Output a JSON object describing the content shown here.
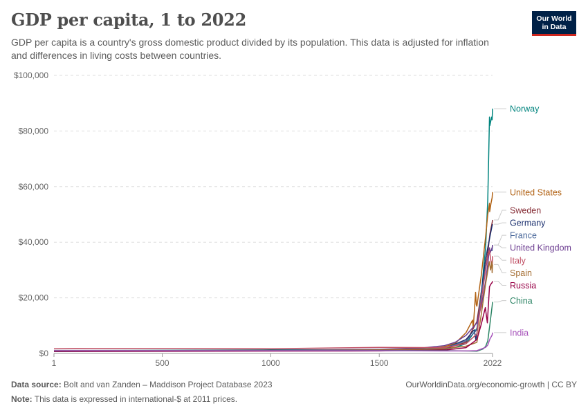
{
  "header": {
    "title": "GDP per capita, 1 to 2022",
    "subtitle": "GDP per capita is a country's gross domestic product divided by its population. This data is adjusted for inflation and differences in living costs between countries.",
    "logo_line1": "Our World",
    "logo_line2": "in Data"
  },
  "footer": {
    "source_label": "Data source:",
    "source_text": "Bolt and van Zanden – Maddison Project Database 2023",
    "note_label": "Note:",
    "note_text": "This data is expressed in international-$ at 2011 prices.",
    "credit": "OurWorldinData.org/economic-growth | CC BY"
  },
  "chart_data": {
    "type": "line",
    "title": "GDP per capita, 1 to 2022",
    "xlabel": "",
    "ylabel": "",
    "xlim": [
      1,
      2022
    ],
    "ylim": [
      0,
      100000
    ],
    "grid": true,
    "legend": "right, direct line labels",
    "x_ticks": [
      1,
      500,
      1000,
      1500,
      2022
    ],
    "x_tick_labels": [
      "1",
      "500",
      "1000",
      "1500",
      "2022"
    ],
    "y_ticks": [
      0,
      20000,
      40000,
      60000,
      80000,
      100000
    ],
    "y_tick_labels": [
      "$0",
      "$20,000",
      "$40,000",
      "$60,000",
      "$80,000",
      "$100,000"
    ],
    "series": [
      {
        "name": "Norway",
        "color": "#00847e",
        "x": [
          1,
          1000,
          1500,
          1800,
          1850,
          1900,
          1950,
          1970,
          1980,
          1990,
          2000,
          2008,
          2010,
          2015,
          2018,
          2020,
          2022
        ],
        "values": [
          1000,
          1300,
          1400,
          1500,
          2200,
          3500,
          9000,
          20000,
          30000,
          38000,
          55000,
          85000,
          82000,
          84000,
          85000,
          84000,
          88000
        ]
      },
      {
        "name": "United States",
        "color": "#b16214",
        "x": [
          1,
          1000,
          1500,
          1700,
          1800,
          1850,
          1900,
          1930,
          1933,
          1944,
          1947,
          1950,
          1970,
          1990,
          2000,
          2008,
          2009,
          2015,
          2020,
          2022
        ],
        "values": [
          1000,
          1000,
          1200,
          1500,
          2400,
          3600,
          7500,
          12000,
          9000,
          22000,
          17500,
          17000,
          28000,
          42000,
          50000,
          54000,
          51000,
          54000,
          56000,
          58000
        ]
      },
      {
        "name": "Sweden",
        "color": "#883039",
        "x": [
          1,
          1500,
          1800,
          1900,
          1950,
          1970,
          1990,
          2000,
          2010,
          2020,
          2022
        ],
        "values": [
          900,
          1300,
          1600,
          4000,
          11500,
          22000,
          31000,
          36000,
          43000,
          47000,
          48000
        ]
      },
      {
        "name": "Germany",
        "color": "#1a2f6e",
        "x": [
          1,
          1000,
          1500,
          1800,
          1900,
          1938,
          1945,
          1950,
          1970,
          1990,
          2000,
          2010,
          2020,
          2022
        ],
        "values": [
          900,
          1000,
          1300,
          1800,
          5000,
          8500,
          5000,
          7000,
          22000,
          34000,
          38000,
          42000,
          46000,
          46500
        ]
      },
      {
        "name": "France",
        "color": "#4c6a9c",
        "x": [
          1,
          1000,
          1500,
          1800,
          1900,
          1950,
          1970,
          1990,
          2000,
          2010,
          2020,
          2022
        ],
        "values": [
          1100,
          1000,
          1400,
          1900,
          4500,
          8500,
          21000,
          31000,
          35000,
          37000,
          37000,
          39000
        ]
      },
      {
        "name": "United Kingdom",
        "color": "#6d3e91",
        "x": [
          1,
          1000,
          1500,
          1700,
          1800,
          1850,
          1900,
          1950,
          1970,
          1990,
          2000,
          2008,
          2010,
          2020,
          2022
        ],
        "values": [
          1000,
          1100,
          1500,
          2000,
          2800,
          4000,
          6500,
          11000,
          17000,
          26000,
          32000,
          38000,
          36000,
          38000,
          39000
        ]
      },
      {
        "name": "Italy",
        "color": "#c15065",
        "x": [
          1,
          100,
          1000,
          1300,
          1500,
          1800,
          1900,
          1950,
          1970,
          1990,
          2000,
          2008,
          2013,
          2020,
          2022
        ],
        "values": [
          1700,
          1800,
          1700,
          2000,
          2200,
          2100,
          3500,
          7000,
          19000,
          30000,
          35000,
          37000,
          34000,
          31000,
          35000
        ]
      },
      {
        "name": "Spain",
        "color": "#a56f34",
        "x": [
          1,
          1000,
          1500,
          1800,
          1900,
          1950,
          1970,
          1990,
          2007,
          2013,
          2019,
          2020,
          2022
        ],
        "values": [
          1000,
          1000,
          1300,
          1700,
          2600,
          4000,
          14000,
          25000,
          33000,
          30000,
          33000,
          29000,
          32000
        ]
      },
      {
        "name": "Russia",
        "color": "#970046",
        "x": [
          1,
          1500,
          1800,
          1900,
          1950,
          1970,
          1989,
          1998,
          2008,
          2015,
          2020,
          2022
        ],
        "values": [
          700,
          900,
          1200,
          2100,
          5000,
          10500,
          16500,
          11000,
          24000,
          25000,
          25500,
          26000
        ]
      },
      {
        "name": "China",
        "color": "#2c8465",
        "x": [
          1,
          1000,
          1500,
          1800,
          1900,
          1950,
          1978,
          1990,
          2000,
          2010,
          2020,
          2022
        ],
        "values": [
          900,
          1100,
          1100,
          1000,
          900,
          800,
          1600,
          2500,
          4500,
          10500,
          17000,
          18500
        ]
      },
      {
        "name": "India",
        "color": "#a652ba",
        "x": [
          1,
          1000,
          1500,
          1800,
          1900,
          1950,
          1990,
          2000,
          2010,
          2020,
          2022
        ],
        "values": [
          1000,
          1000,
          1000,
          900,
          900,
          1000,
          2200,
          3000,
          5200,
          6600,
          7500
        ]
      }
    ],
    "end_labels": [
      {
        "name": "Norway",
        "color": "#00847e",
        "label_y": 88000,
        "end_value": 88000
      },
      {
        "name": "United States",
        "color": "#b16214",
        "label_y": 58000,
        "end_value": 58000
      },
      {
        "name": "Sweden",
        "color": "#883039",
        "label_y": 51500,
        "end_value": 48000
      },
      {
        "name": "Germany",
        "color": "#1a2f6e",
        "label_y": 47000,
        "end_value": 46500
      },
      {
        "name": "France",
        "color": "#4c6a9c",
        "label_y": 42500,
        "end_value": 39000
      },
      {
        "name": "United Kingdom",
        "color": "#6d3e91",
        "label_y": 38000,
        "end_value": 39000
      },
      {
        "name": "Italy",
        "color": "#c15065",
        "label_y": 33500,
        "end_value": 35000
      },
      {
        "name": "Spain",
        "color": "#a56f34",
        "label_y": 29000,
        "end_value": 32000
      },
      {
        "name": "Russia",
        "color": "#970046",
        "label_y": 24500,
        "end_value": 26000
      },
      {
        "name": "China",
        "color": "#2c8465",
        "label_y": 19000,
        "end_value": 18500
      },
      {
        "name": "India",
        "color": "#a652ba",
        "label_y": 7500,
        "end_value": 7500
      }
    ]
  }
}
